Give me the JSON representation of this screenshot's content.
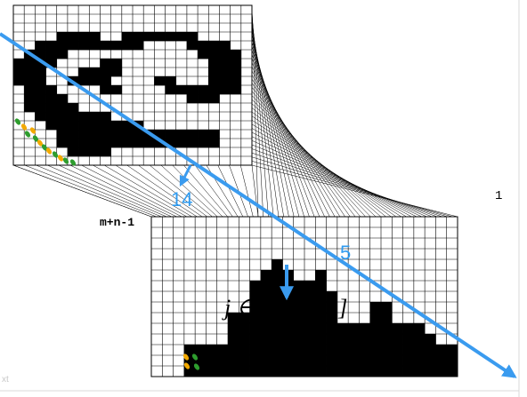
{
  "labels": {
    "one": "1",
    "m_n_1": "m+n-1",
    "fourteen": "14",
    "five": "5",
    "formula": "j ∈[0, m −1]",
    "corner_fragment": "xt"
  },
  "colors": {
    "arrow": "#3a9bef",
    "grid": "#000000",
    "fill": "#000000",
    "dot_green": "#2e9d2e",
    "dot_yellow": "#f2a900"
  },
  "top_grid": {
    "cols": 22,
    "rows": 18,
    "mask": [
      "0000000000000000000000",
      "0000000000000000000000",
      "0000000000000000000000",
      "0000111100111111100000",
      "0011111111110000111100",
      "0111100000000000011110",
      "1111000011000000001110",
      "1110001111000000001110",
      "1110011110000110001110",
      "0111000011000011111110",
      "0111100000000000111000",
      "0111110000000000000000",
      "0011111110000000000000",
      "0001111111110000000000",
      "0000111111111111111000",
      "0000111111111111111000",
      "0000011110000000000000",
      "0000000000000000000000"
    ]
  },
  "bottom_grid": {
    "cols": 28,
    "rows": 15,
    "heights": [
      0,
      0,
      0,
      3,
      3,
      3,
      3,
      6,
      6,
      9,
      10,
      11,
      10,
      9,
      9,
      10,
      8,
      5,
      5,
      5,
      7,
      7,
      5,
      5,
      5,
      4,
      3,
      3
    ]
  }
}
